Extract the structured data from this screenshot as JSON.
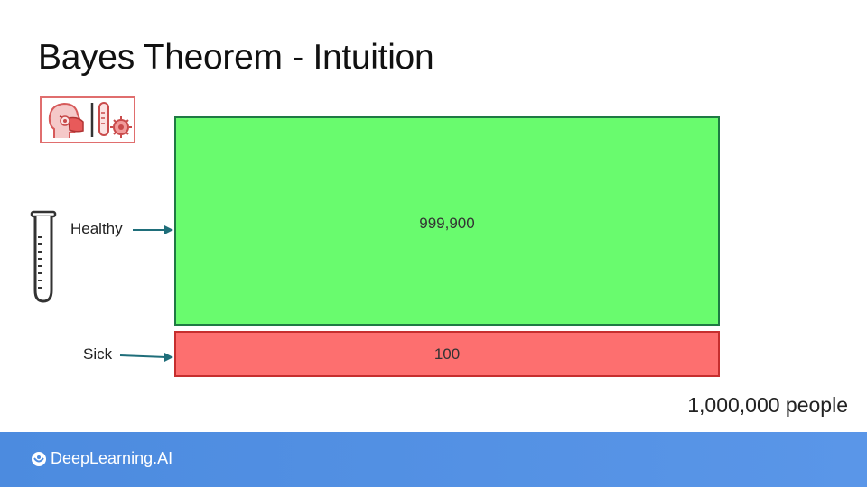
{
  "slide": {
    "title": "Bayes Theorem - Intuition"
  },
  "diagram": {
    "labels": {
      "healthy": "Healthy",
      "sick": "Sick"
    },
    "counts": {
      "healthy": "999,900",
      "sick": "100"
    },
    "total": "1,000,000 people"
  },
  "footer": {
    "brand": "DeepLearning.AI"
  },
  "colors": {
    "healthy_fill": "#69fb6e",
    "healthy_border": "#1e7a43",
    "sick_fill": "#fd6f6f",
    "sick_border": "#c62e2e",
    "arrow": "#1f6e7a",
    "footer": "#4c8bdf"
  },
  "icons": [
    "sick-person-mask-icon",
    "test-tube-virus-icon",
    "test-tube-icon",
    "deeplearning-logo-icon"
  ]
}
